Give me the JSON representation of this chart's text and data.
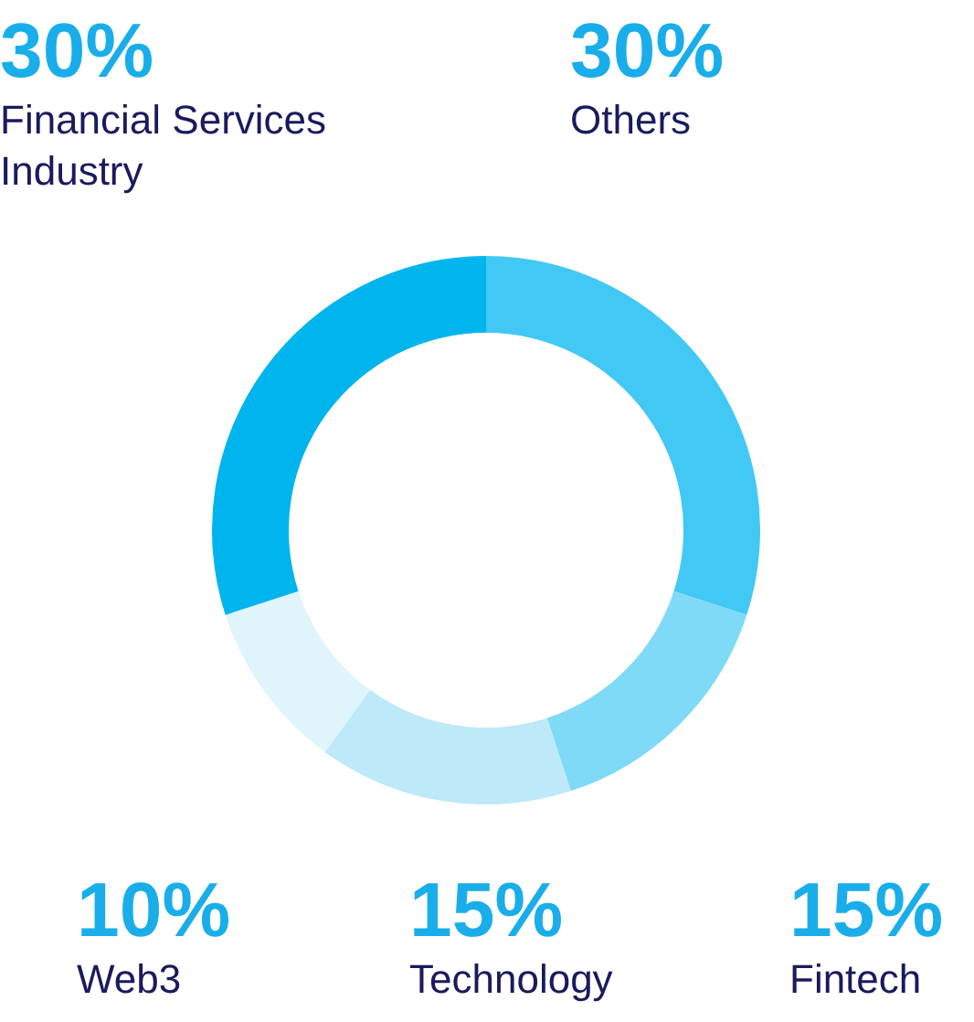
{
  "chart_data": {
    "type": "donut",
    "categories": [
      "Others",
      "Fintech",
      "Technology",
      "Web3",
      "Financial Services Industry"
    ],
    "values": [
      30,
      15,
      15,
      10,
      30
    ],
    "value_labels": [
      "30%",
      "15%",
      "15%",
      "10%",
      "30%"
    ],
    "colors": [
      "#42c8f5",
      "#7fdaf7",
      "#bde9f8",
      "#e0f4fb",
      "#00b4ee"
    ],
    "legend": false
  }
}
